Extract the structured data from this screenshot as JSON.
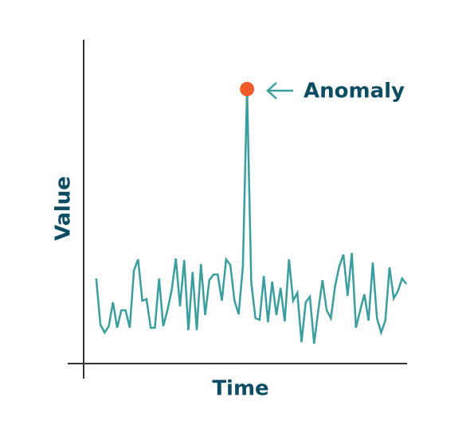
{
  "chart_data": {
    "type": "line",
    "x_label": "Time",
    "y_label": "Value",
    "x": [
      0,
      1,
      2,
      3,
      4,
      5,
      6,
      7,
      8,
      9,
      10,
      11,
      12,
      13,
      14,
      15,
      16,
      17,
      18,
      19,
      20,
      21,
      22,
      23,
      24,
      25,
      26,
      27,
      28,
      29,
      30,
      31,
      32,
      33,
      34,
      35,
      36,
      37,
      38,
      39,
      40,
      41,
      42,
      43,
      44,
      45,
      46,
      47,
      48,
      49,
      50,
      51,
      52,
      53,
      54,
      55,
      56,
      57,
      58,
      59,
      60,
      61,
      62,
      63,
      64,
      65,
      66,
      67,
      68,
      69,
      70,
      71,
      72,
      73,
      74
    ],
    "series": [
      {
        "color": "#3a9e9e",
        "values": [
          107,
          49,
          39,
          47,
          77,
          45,
          67,
          67,
          45,
          117,
          131,
          79,
          81,
          45,
          45,
          107,
          47,
          67,
          92,
          132,
          72,
          130,
          42,
          115,
          42,
          125,
          61,
          105,
          112,
          112,
          79,
          131,
          124,
          79,
          62,
          122,
          345,
          102,
          57,
          55,
          110,
          52,
          103,
          61,
          95,
          53,
          131,
          79,
          89,
          27,
          77,
          84,
          25,
          67,
          105,
          67,
          57,
          97,
          122,
          137,
          85,
          139,
          45,
          67,
          87,
          54,
          127,
          57,
          39,
          54,
          121,
          82,
          91,
          107,
          100
        ]
      }
    ],
    "xlim": [
      -3,
      74
    ],
    "ylim": [
      0,
      407
    ],
    "annotation": {
      "text": "Anomaly",
      "x": 36,
      "color": "#f15a2b"
    }
  }
}
